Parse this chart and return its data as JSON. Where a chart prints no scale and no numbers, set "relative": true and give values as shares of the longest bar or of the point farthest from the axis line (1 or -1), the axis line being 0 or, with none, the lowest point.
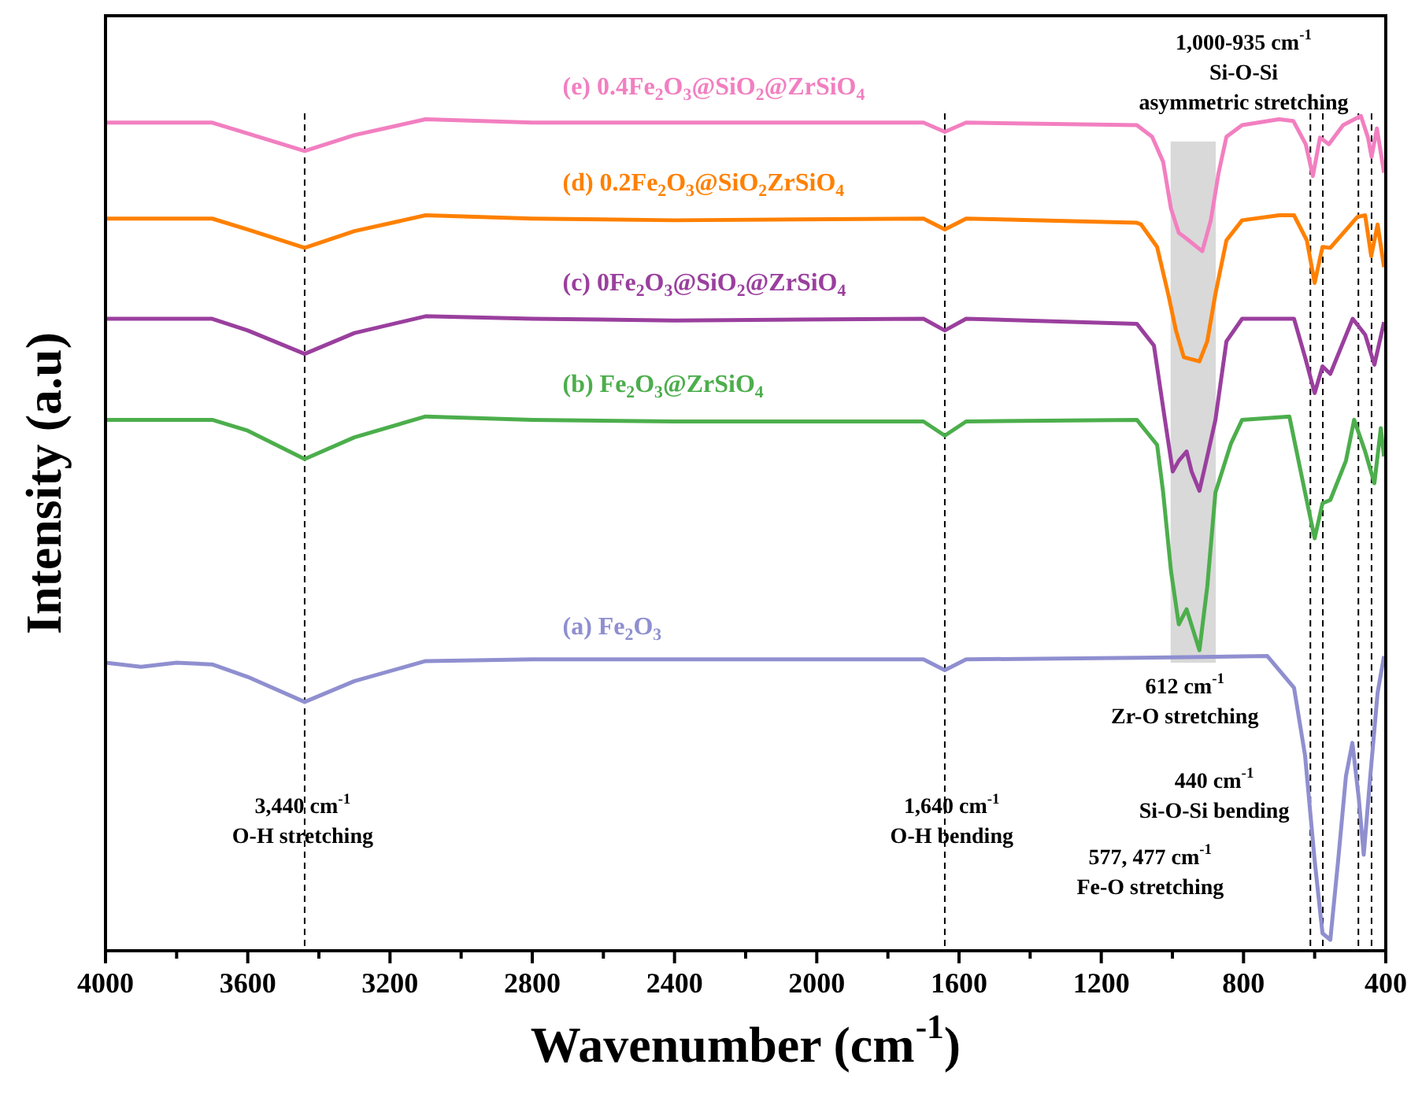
{
  "chart_data": {
    "type": "line",
    "relative": true,
    "xlabel": "Wavenumber (cm$^{-1}$)",
    "ylabel": "Intensity (a.u)",
    "xlim": [
      4000,
      400
    ],
    "xticks": [
      4000,
      {
        "value": 3800,
        "label": null
      },
      3600,
      {
        "value": 3400,
        "label": null
      },
      3200,
      {
        "value": 3000,
        "label": null
      },
      2800,
      {
        "value": 2600,
        "label": null
      },
      2400,
      {
        "value": 2200,
        "label": null
      },
      2000,
      {
        "value": 1800,
        "label": null
      },
      1600,
      {
        "value": 1400,
        "label": null
      },
      1200,
      {
        "value": 1000,
        "label": null
      },
      800,
      {
        "value": 600,
        "label": null
      },
      400
    ],
    "series": [
      {
        "name": "(e) 0.4Fe$_{2}$O$_{3}$@SiO$_{2}$@ZrSiO$_{4}$",
        "color": "#f27fc0",
        "x": [
          4000,
          3700,
          3600,
          3440,
          3300,
          3100,
          2800,
          2400,
          1700,
          1640,
          1580,
          1100,
          1057,
          1026,
          1004,
          982,
          960,
          931,
          916,
          892,
          870,
          848,
          804,
          700,
          660,
          625,
          605,
          585,
          560,
          520,
          470,
          450,
          440,
          425,
          405
        ],
        "values": [
          0.992,
          0.992,
          0.979,
          0.958,
          0.977,
          0.996,
          0.992,
          0.992,
          0.992,
          0.981,
          0.992,
          0.989,
          0.975,
          0.945,
          0.889,
          0.86,
          0.853,
          0.843,
          0.838,
          0.875,
          0.932,
          0.975,
          0.989,
          0.996,
          0.994,
          0.966,
          0.928,
          0.974,
          0.966,
          0.989,
          1,
          0.974,
          0.951,
          0.985,
          0.932
        ]
      },
      {
        "name": "(d) 0.2Fe$_{2}$O$_{3}$@SiO$_{2}$ZrSiO$_{4}$",
        "color": "#ff8000",
        "x": [
          4000,
          3700,
          3600,
          3440,
          3300,
          3100,
          2800,
          2400,
          1700,
          1640,
          1580,
          1100,
          1088,
          1043,
          1012,
          990,
          968,
          924,
          902,
          879,
          848,
          804,
          700,
          658,
          622,
          600,
          578,
          556,
          480,
          458,
          441,
          423,
          405
        ],
        "values": [
          0.877,
          0.877,
          0.864,
          0.842,
          0.862,
          0.881,
          0.877,
          0.875,
          0.877,
          0.864,
          0.877,
          0.872,
          0.87,
          0.843,
          0.787,
          0.743,
          0.711,
          0.706,
          0.73,
          0.787,
          0.851,
          0.875,
          0.881,
          0.881,
          0.851,
          0.8,
          0.843,
          0.842,
          0.879,
          0.881,
          0.832,
          0.87,
          0.819
        ]
      },
      {
        "name": "(c) 0Fe$_{2}$O$_{3}$@SiO$_{2}$@ZrSiO$_{4}$",
        "color": "#9a3f9e",
        "x": [
          4000,
          3700,
          3600,
          3440,
          3300,
          3100,
          2800,
          2400,
          1700,
          1640,
          1580,
          1100,
          1052,
          1021,
          999,
          982,
          960,
          946,
          924,
          902,
          879,
          848,
          804,
          658,
          627,
          600,
          578,
          556,
          493,
          458,
          432,
          405
        ],
        "values": [
          0.757,
          0.757,
          0.743,
          0.715,
          0.74,
          0.76,
          0.757,
          0.755,
          0.757,
          0.743,
          0.757,
          0.751,
          0.725,
          0.636,
          0.574,
          0.587,
          0.598,
          0.574,
          0.551,
          0.592,
          0.636,
          0.73,
          0.757,
          0.757,
          0.711,
          0.668,
          0.7,
          0.691,
          0.757,
          0.738,
          0.702,
          0.753
        ]
      },
      {
        "name": "(b) Fe$_{2}$O$_{3}$@ZrSiO$_{4}$",
        "color": "#4cae4c",
        "x": [
          4000,
          3700,
          3600,
          3440,
          3300,
          3100,
          2800,
          2400,
          1700,
          1640,
          1580,
          1100,
          1043,
          1026,
          1004,
          982,
          960,
          924,
          902,
          879,
          835,
          804,
          671,
          627,
          600,
          578,
          556,
          512,
          489,
          458,
          432,
          414,
          405
        ],
        "values": [
          0.636,
          0.636,
          0.623,
          0.589,
          0.615,
          0.64,
          0.636,
          0.634,
          0.634,
          0.617,
          0.634,
          0.636,
          0.606,
          0.549,
          0.455,
          0.391,
          0.409,
          0.36,
          0.436,
          0.549,
          0.608,
          0.636,
          0.64,
          0.549,
          0.494,
          0.536,
          0.54,
          0.587,
          0.636,
          0.598,
          0.56,
          0.626,
          0.592
        ]
      },
      {
        "name": "(a) Fe$_{2}$O$_{3}$",
        "color": "#8f8fd0",
        "x": [
          4000,
          3900,
          3800,
          3700,
          3600,
          3440,
          3300,
          3100,
          2800,
          2400,
          1700,
          1640,
          1580,
          1100,
          733,
          658,
          627,
          600,
          578,
          556,
          534,
          512,
          494,
          476,
          462,
          445,
          423,
          405
        ],
        "values": [
          0.345,
          0.34,
          0.345,
          0.343,
          0.328,
          0.298,
          0.323,
          0.347,
          0.349,
          0.349,
          0.349,
          0.336,
          0.349,
          0.351,
          0.353,
          0.315,
          0.234,
          0.108,
          0.021,
          0.013,
          0.108,
          0.209,
          0.249,
          0.183,
          0.115,
          0.202,
          0.309,
          0.353
        ]
      }
    ],
    "ref_lines": [
      {
        "axis": "x",
        "value": 3440,
        "line_style": "dashed",
        "color": "#000000"
      },
      {
        "axis": "x",
        "value": 1640,
        "line_style": "dashed",
        "color": "#000000"
      },
      {
        "axis": "x",
        "value": 612,
        "line_style": "dashed",
        "color": "#000000"
      },
      {
        "axis": "x",
        "value": 577,
        "line_style": "dashed",
        "color": "#000000"
      },
      {
        "axis": "x",
        "value": 477,
        "line_style": "dashed",
        "color": "#000000"
      },
      {
        "axis": "x",
        "value": 440,
        "line_style": "dashed",
        "color": "#000000"
      }
    ],
    "bands": [
      {
        "axis": "x",
        "from": 1005,
        "to": 878,
        "color": "#d9d9d9"
      }
    ],
    "annotations": [
      "1,000-935 cm$^{-1}$",
      "Si-O-Si",
      "asymmetric stretching",
      "3,440 cm$^{-1}$",
      "O-H stretching",
      "1,640 cm$^{-1}$",
      "O-H bending",
      "612 cm$^{-1}$",
      "Zr-O stretching",
      "440 cm$^{-1}$",
      "Si-O-Si bending",
      "577, 477 cm$^{-1}$",
      "Fe-O stretching"
    ]
  }
}
